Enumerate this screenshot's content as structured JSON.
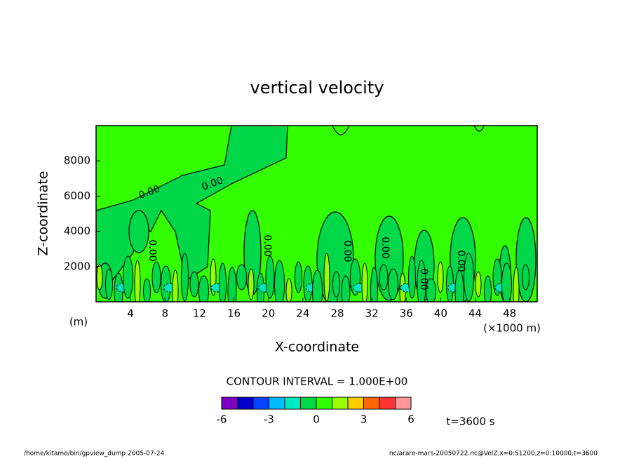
{
  "chart_data": {
    "type": "contour",
    "title": "vertical velocity",
    "x_label": "X-coordinate",
    "y_label": "Z-coordinate",
    "x_unit": "(×1000 m)",
    "y_unit": "(m)",
    "xlim": [
      0,
      51.2
    ],
    "ylim": [
      0,
      10000
    ],
    "xticks": [
      4,
      8,
      12,
      16,
      20,
      24,
      28,
      32,
      36,
      40,
      44,
      48
    ],
    "yticks": [
      2000,
      4000,
      6000,
      8000
    ],
    "contour_labels": [
      "0.00",
      "0.00",
      "0.00",
      "0.00",
      "0.00",
      "0.00",
      "0.00",
      "0.00"
    ],
    "contour_interval_label": "CONTOUR INTERVAL = 1.000E+00",
    "colorbar": {
      "levels": [
        -6,
        -5,
        -4,
        -3,
        -2,
        -1,
        0,
        1,
        2,
        3,
        4,
        5,
        6
      ],
      "colors": [
        "#8000c0",
        "#0000cc",
        "#0044ff",
        "#00bbff",
        "#00e8c0",
        "#00d84a",
        "#33ff00",
        "#99ff00",
        "#ffcc00",
        "#ff6600",
        "#ff3333",
        "#ff9999"
      ],
      "ticks": [
        -6,
        -3,
        0,
        3,
        6
      ]
    },
    "time_label": "t=3600 s",
    "footer_left": "/home/kitamo/bin/gpview_dump  2005-07-24",
    "footer_right": "nc/arare-mars-20050722.nc@VelZ,x=0:51200,z=0:10000,t=3600"
  }
}
